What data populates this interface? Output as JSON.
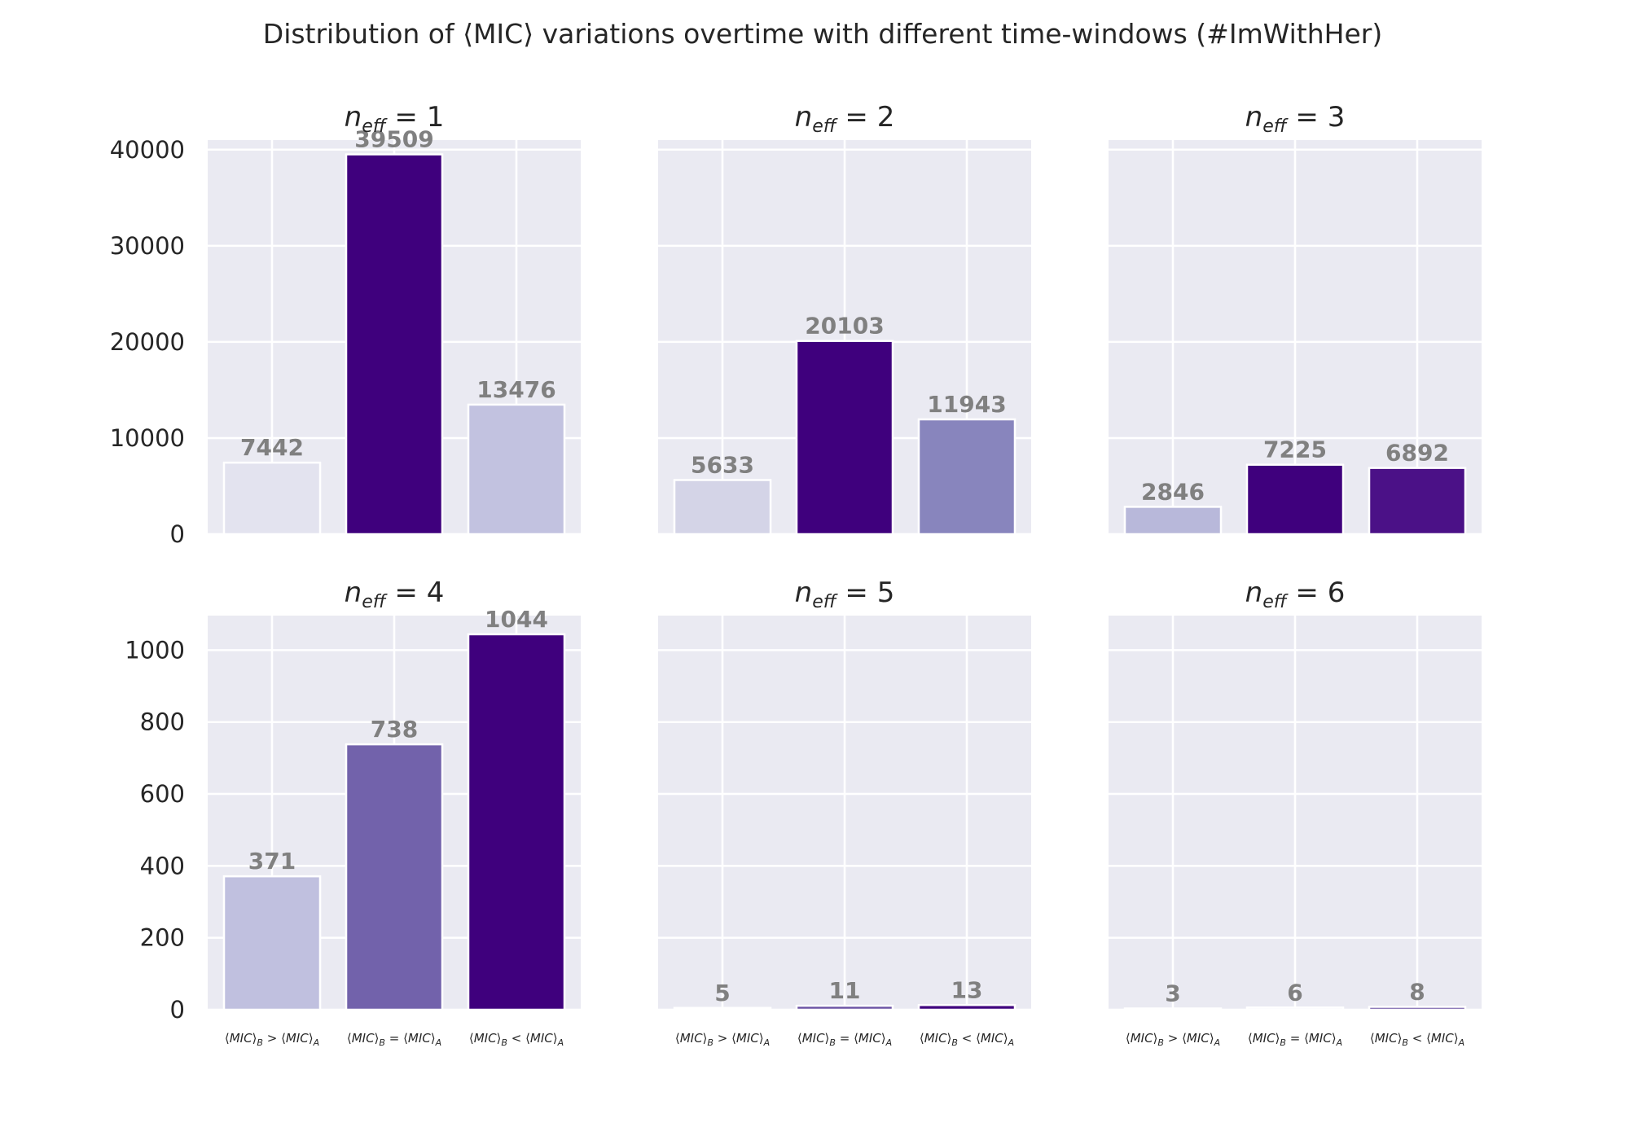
{
  "chart_data": {
    "type": "bar",
    "title": "Distribution of ⟨MIC⟩ variations overtime with different time-windows (#ImWithHer)",
    "categories": [
      {
        "pre": "⟨",
        "var": "MIC",
        "post": "⟩",
        "sub1": "B",
        "op": " > ",
        "pre2": "⟨",
        "var2": "MIC",
        "post2": "⟩",
        "sub2": "A"
      },
      {
        "pre": "⟨",
        "var": "MIC",
        "post": "⟩",
        "sub1": "B",
        "op": " = ",
        "pre2": "⟨",
        "var2": "MIC",
        "post2": "⟩",
        "sub2": "A"
      },
      {
        "pre": "⟨",
        "var": "MIC",
        "post": "⟩",
        "sub1": "B",
        "op": " < ",
        "pre2": "⟨",
        "var2": "MIC",
        "post2": "⟩",
        "sub2": "A"
      }
    ],
    "panels": [
      {
        "title_var": "n",
        "title_sub": "eff",
        "title_rhs": " = 1",
        "values": [
          7442,
          39509,
          13476
        ],
        "colors": [
          "#e3e3ef",
          "#3f007d",
          "#c2c2e0"
        ],
        "ylim": [
          0,
          41000
        ],
        "yticks": [
          "0",
          "10000",
          "20000",
          "30000",
          "40000"
        ],
        "ytick_values": [
          0,
          10000,
          20000,
          30000,
          40000
        ]
      },
      {
        "title_var": "n",
        "title_sub": "eff",
        "title_rhs": " = 2",
        "values": [
          5633,
          20103,
          11943
        ],
        "colors": [
          "#d4d4e7",
          "#3f007d",
          "#8885bd"
        ],
        "ylim": [
          0,
          41000
        ],
        "yticks": [],
        "ytick_values": [
          0,
          10000,
          20000,
          30000,
          40000
        ]
      },
      {
        "title_var": "n",
        "title_sub": "eff",
        "title_rhs": " = 3",
        "values": [
          2846,
          7225,
          6892
        ],
        "colors": [
          "#b8b8da",
          "#3f007d",
          "#4b1187"
        ],
        "ylim": [
          0,
          41000
        ],
        "yticks": [],
        "ytick_values": [
          0,
          10000,
          20000,
          30000,
          40000
        ]
      },
      {
        "title_var": "n",
        "title_sub": "eff",
        "title_rhs": " = 4",
        "values": [
          371,
          738,
          1044
        ],
        "colors": [
          "#c0c0df",
          "#7262ab",
          "#3f007d"
        ],
        "ylim": [
          0,
          1096
        ],
        "yticks": [
          "0",
          "200",
          "400",
          "600",
          "800",
          "1000"
        ],
        "ytick_values": [
          0,
          200,
          400,
          600,
          800,
          1000
        ]
      },
      {
        "title_var": "n",
        "title_sub": "eff",
        "title_rhs": " = 5",
        "values": [
          5,
          11,
          13
        ],
        "colors": [
          "#dcdceb",
          "#6a51a3",
          "#3f007d"
        ],
        "ylim": [
          0,
          1096
        ],
        "yticks": [],
        "ytick_values": [
          0,
          200,
          400,
          600,
          800,
          1000
        ]
      },
      {
        "title_var": "n",
        "title_sub": "eff",
        "title_rhs": " = 6",
        "values": [
          3,
          6,
          8
        ],
        "colors": [
          "#e3e3ef",
          "#ececf4",
          "#6a51a3"
        ],
        "ylim": [
          0,
          1096
        ],
        "yticks": [],
        "ytick_values": [
          0,
          200,
          400,
          600,
          800,
          1000
        ]
      }
    ],
    "grid": true,
    "background": "#eaeaf2",
    "label_color": "#808080"
  }
}
